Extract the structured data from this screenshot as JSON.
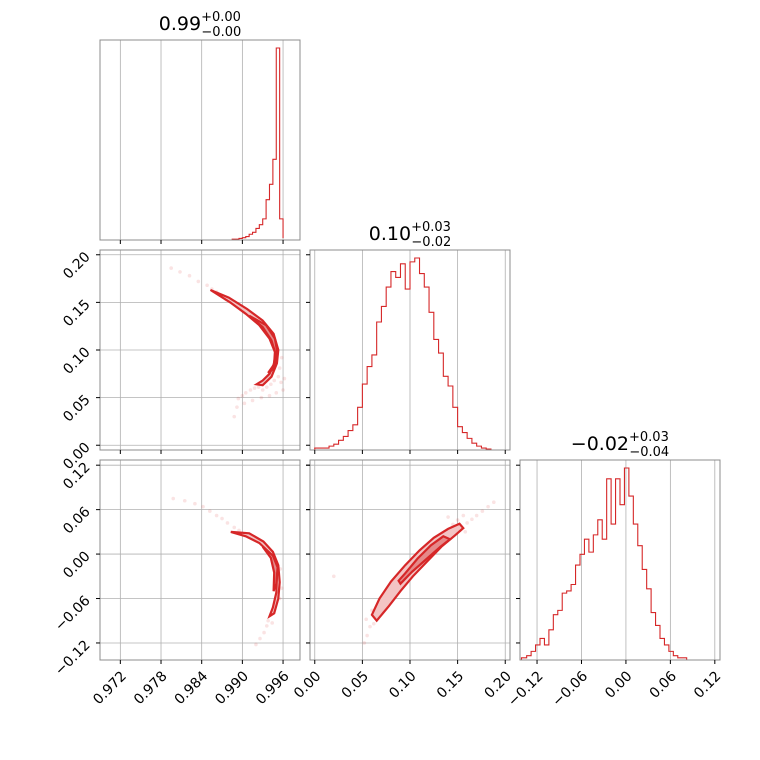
{
  "chart_data": {
    "type": "corner",
    "accent_color": "#d62728",
    "grid": true,
    "parameters": [
      {
        "title_value": "0.99",
        "title_plus": "+0.00",
        "title_minus": "−0.00",
        "range": [
          0.969,
          0.9985
        ],
        "ticks": [
          0.972,
          0.978,
          0.984,
          0.99,
          0.996
        ],
        "tick_labels": [
          "0.972",
          "0.978",
          "0.984",
          "0.990",
          "0.996"
        ]
      },
      {
        "title_value": "0.10",
        "title_plus": "+0.03",
        "title_minus": "−0.02",
        "range": [
          -0.005,
          0.205
        ],
        "ticks": [
          0.0,
          0.05,
          0.1,
          0.15,
          0.2
        ],
        "tick_labels": [
          "0.00",
          "0.05",
          "0.10",
          "0.15",
          "0.20"
        ]
      },
      {
        "title_value": "−0.02",
        "title_plus": "+0.03",
        "title_minus": "−0.04",
        "range": [
          -0.143,
          0.127
        ],
        "ticks": [
          -0.12,
          -0.06,
          0.0,
          0.06,
          0.12
        ],
        "tick_labels": [
          "−0.12",
          "−0.06",
          "0.00",
          "0.06",
          "0.12"
        ]
      }
    ],
    "marginals": [
      {
        "edges": [
          0.97,
          0.9885,
          0.9895,
          0.99,
          0.9905,
          0.991,
          0.9915,
          0.992,
          0.9925,
          0.993,
          0.9935,
          0.994,
          0.9945,
          0.995,
          0.9955,
          0.996
        ],
        "counts": [
          0.0,
          0.004,
          0.008,
          0.012,
          0.018,
          0.03,
          0.04,
          0.06,
          0.08,
          0.11,
          0.21,
          0.29,
          0.42,
          1.0,
          0.11,
          0.01
        ]
      },
      {
        "edges": [
          0.0,
          0.015,
          0.02,
          0.025,
          0.03,
          0.035,
          0.04,
          0.045,
          0.05,
          0.055,
          0.06,
          0.065,
          0.07,
          0.075,
          0.08,
          0.085,
          0.09,
          0.095,
          0.1,
          0.105,
          0.11,
          0.115,
          0.12,
          0.125,
          0.13,
          0.135,
          0.14,
          0.145,
          0.15,
          0.155,
          0.16,
          0.165,
          0.17,
          0.175,
          0.18,
          0.185,
          0.2
        ],
        "counts": [
          0.01,
          0.02,
          0.03,
          0.05,
          0.07,
          0.1,
          0.13,
          0.22,
          0.34,
          0.43,
          0.49,
          0.66,
          0.74,
          0.84,
          0.92,
          0.89,
          0.96,
          0.83,
          0.97,
          0.99,
          0.91,
          0.84,
          0.71,
          0.57,
          0.5,
          0.38,
          0.33,
          0.22,
          0.12,
          0.09,
          0.06,
          0.035,
          0.02,
          0.01,
          0.005,
          0.0
        ]
      },
      {
        "edges": [
          -0.141,
          -0.134,
          -0.128,
          -0.122,
          -0.116,
          -0.11,
          -0.104,
          -0.098,
          -0.092,
          -0.086,
          -0.08,
          -0.074,
          -0.068,
          -0.062,
          -0.056,
          -0.05,
          -0.044,
          -0.038,
          -0.032,
          -0.026,
          -0.02,
          -0.014,
          -0.008,
          -0.002,
          0.004,
          0.01,
          0.016,
          0.022,
          0.028,
          0.034,
          0.04,
          0.046,
          0.052,
          0.058,
          0.064,
          0.07,
          0.076,
          0.082,
          0.124
        ],
        "counts": [
          0.01,
          0.02,
          0.04,
          0.07,
          0.1,
          0.07,
          0.14,
          0.21,
          0.23,
          0.31,
          0.32,
          0.35,
          0.44,
          0.49,
          0.56,
          0.5,
          0.58,
          0.65,
          0.56,
          0.84,
          0.63,
          0.84,
          0.72,
          0.89,
          0.76,
          0.63,
          0.53,
          0.42,
          0.33,
          0.22,
          0.16,
          0.1,
          0.07,
          0.04,
          0.02,
          0.01,
          0.01,
          0.0
        ]
      }
    ],
    "pair_21": {
      "outer_contour": [
        [
          0.9853,
          0.163
        ],
        [
          0.9882,
          0.15
        ],
        [
          0.9905,
          0.138
        ],
        [
          0.9925,
          0.126
        ],
        [
          0.994,
          0.112
        ],
        [
          0.9948,
          0.098
        ],
        [
          0.9947,
          0.086
        ],
        [
          0.994,
          0.075
        ],
        [
          0.993,
          0.068
        ],
        [
          0.9921,
          0.064
        ],
        [
          0.993,
          0.063
        ],
        [
          0.9943,
          0.072
        ],
        [
          0.9951,
          0.086
        ],
        [
          0.9953,
          0.1
        ],
        [
          0.9946,
          0.117
        ],
        [
          0.993,
          0.131
        ],
        [
          0.9907,
          0.143
        ],
        [
          0.988,
          0.155
        ],
        [
          0.9853,
          0.163
        ]
      ],
      "inner_contour": [
        [
          0.991,
          0.136
        ],
        [
          0.993,
          0.124
        ],
        [
          0.9943,
          0.11
        ],
        [
          0.9949,
          0.096
        ],
        [
          0.9946,
          0.084
        ],
        [
          0.9938,
          0.076
        ],
        [
          0.9946,
          0.08
        ],
        [
          0.9952,
          0.096
        ],
        [
          0.9948,
          0.112
        ],
        [
          0.9935,
          0.126
        ],
        [
          0.991,
          0.136
        ]
      ],
      "samples": [
        [
          0.9795,
          0.186
        ],
        [
          0.9808,
          0.182
        ],
        [
          0.9822,
          0.178
        ],
        [
          0.9835,
          0.172
        ],
        [
          0.9848,
          0.168
        ],
        [
          0.9855,
          0.164
        ],
        [
          0.9862,
          0.161
        ],
        [
          0.987,
          0.157
        ],
        [
          0.9876,
          0.153
        ],
        [
          0.9884,
          0.15
        ],
        [
          0.9892,
          0.146
        ],
        [
          0.99,
          0.142
        ],
        [
          0.9894,
          0.049
        ],
        [
          0.99,
          0.052
        ],
        [
          0.9905,
          0.055
        ],
        [
          0.9912,
          0.058
        ],
        [
          0.9918,
          0.06
        ],
        [
          0.9924,
          0.061
        ],
        [
          0.993,
          0.058
        ],
        [
          0.9936,
          0.061
        ],
        [
          0.9942,
          0.064
        ],
        [
          0.9947,
          0.068
        ],
        [
          0.9953,
          0.072
        ],
        [
          0.9957,
          0.066
        ],
        [
          0.9962,
          0.07
        ],
        [
          0.996,
          0.058
        ],
        [
          0.995,
          0.055
        ],
        [
          0.994,
          0.052
        ],
        [
          0.9928,
          0.05
        ],
        [
          0.9915,
          0.047
        ],
        [
          0.9903,
          0.044
        ],
        [
          0.9892,
          0.04
        ],
        [
          0.9888,
          0.03
        ],
        [
          0.9955,
          0.081
        ],
        [
          0.9958,
          0.092
        ]
      ]
    },
    "pair_31": {
      "outer_contour": [
        [
          0.9883,
          0.03
        ],
        [
          0.9905,
          0.024
        ],
        [
          0.9925,
          0.015
        ],
        [
          0.994,
          0.002
        ],
        [
          0.9948,
          -0.014
        ],
        [
          0.9951,
          -0.032
        ],
        [
          0.995,
          -0.052
        ],
        [
          0.9945,
          -0.072
        ],
        [
          0.994,
          -0.084
        ],
        [
          0.9947,
          -0.08
        ],
        [
          0.9953,
          -0.06
        ],
        [
          0.9955,
          -0.038
        ],
        [
          0.9953,
          -0.015
        ],
        [
          0.9945,
          0.003
        ],
        [
          0.9931,
          0.017
        ],
        [
          0.991,
          0.028
        ],
        [
          0.9883,
          0.03
        ]
      ],
      "inner_contour": [
        [
          0.993,
          0.01
        ],
        [
          0.9942,
          -0.005
        ],
        [
          0.9947,
          -0.025
        ],
        [
          0.9946,
          -0.05
        ],
        [
          0.995,
          -0.04
        ],
        [
          0.9952,
          -0.018
        ],
        [
          0.9945,
          -0.002
        ],
        [
          0.993,
          0.01
        ]
      ],
      "samples": [
        [
          0.9798,
          0.075
        ],
        [
          0.9815,
          0.072
        ],
        [
          0.983,
          0.068
        ],
        [
          0.9842,
          0.064
        ],
        [
          0.9852,
          0.058
        ],
        [
          0.9862,
          0.052
        ],
        [
          0.987,
          0.048
        ],
        [
          0.9878,
          0.042
        ],
        [
          0.9888,
          0.036
        ],
        [
          0.9895,
          0.032
        ],
        [
          0.9936,
          -0.097
        ],
        [
          0.9932,
          -0.106
        ],
        [
          0.9926,
          -0.114
        ],
        [
          0.992,
          -0.122
        ],
        [
          0.9938,
          -0.09
        ],
        [
          0.9956,
          -0.02
        ],
        [
          0.9958,
          -0.046
        ],
        [
          0.9955,
          -0.06
        ],
        [
          0.9944,
          -0.093
        ]
      ]
    },
    "pair_32": {
      "outer_contour": [
        [
          0.065,
          -0.09
        ],
        [
          0.078,
          -0.07
        ],
        [
          0.09,
          -0.05
        ],
        [
          0.103,
          -0.03
        ],
        [
          0.118,
          -0.01
        ],
        [
          0.133,
          0.01
        ],
        [
          0.147,
          0.025
        ],
        [
          0.156,
          0.035
        ],
        [
          0.152,
          0.041
        ],
        [
          0.14,
          0.034
        ],
        [
          0.125,
          0.022
        ],
        [
          0.11,
          0.005
        ],
        [
          0.095,
          -0.015
        ],
        [
          0.08,
          -0.037
        ],
        [
          0.068,
          -0.06
        ],
        [
          0.06,
          -0.082
        ],
        [
          0.065,
          -0.09
        ]
      ],
      "inner_contour": [
        [
          0.09,
          -0.04
        ],
        [
          0.102,
          -0.024
        ],
        [
          0.118,
          -0.006
        ],
        [
          0.132,
          0.01
        ],
        [
          0.142,
          0.02
        ],
        [
          0.135,
          0.024
        ],
        [
          0.122,
          0.012
        ],
        [
          0.108,
          -0.006
        ],
        [
          0.095,
          -0.026
        ],
        [
          0.088,
          -0.036
        ],
        [
          0.09,
          -0.04
        ]
      ],
      "samples": [
        [
          0.052,
          -0.12
        ],
        [
          0.055,
          -0.11
        ],
        [
          0.058,
          -0.098
        ],
        [
          0.062,
          -0.094
        ],
        [
          0.054,
          -0.088
        ],
        [
          0.06,
          -0.076
        ],
        [
          0.066,
          -0.07
        ],
        [
          0.072,
          -0.064
        ],
        [
          0.072,
          -0.056
        ],
        [
          0.08,
          -0.048
        ],
        [
          0.086,
          -0.04
        ],
        [
          0.16,
          0.042
        ],
        [
          0.165,
          0.047
        ],
        [
          0.17,
          0.052
        ],
        [
          0.176,
          0.058
        ],
        [
          0.182,
          0.064
        ],
        [
          0.188,
          0.07
        ],
        [
          0.156,
          0.052
        ],
        [
          0.15,
          0.046
        ],
        [
          0.145,
          0.04
        ],
        [
          0.02,
          -0.03
        ],
        [
          0.14,
          0.05
        ],
        [
          0.158,
          0.03
        ]
      ]
    }
  }
}
